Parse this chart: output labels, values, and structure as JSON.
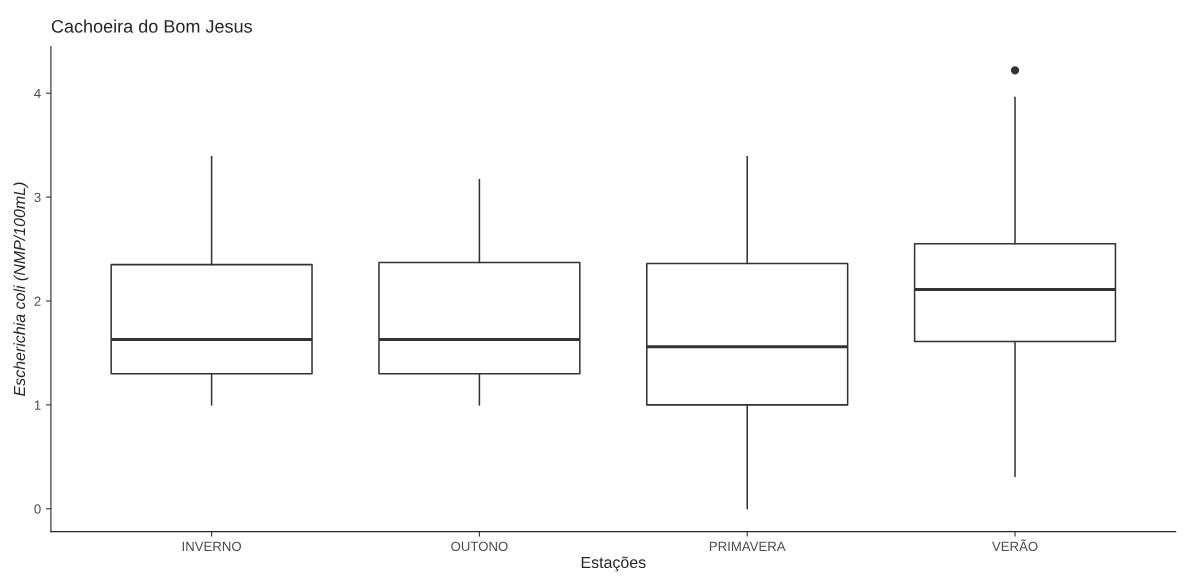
{
  "chart_data": {
    "type": "box",
    "title": "Cachoeira do Bom Jesus",
    "xlabel": "Estações",
    "ylabel": "Escherichia coli (NMP/100mL)",
    "categories": [
      "INVERNO",
      "OUTONO",
      "PRIMAVERA",
      "VERÃO"
    ],
    "boxes": [
      {
        "low": 1.0,
        "q1": 1.3,
        "median": 1.63,
        "q3": 2.35,
        "high": 3.39
      },
      {
        "low": 1.0,
        "q1": 1.3,
        "median": 1.63,
        "q3": 2.37,
        "high": 3.17
      },
      {
        "low": 0.0,
        "q1": 1.0,
        "median": 1.56,
        "q3": 2.36,
        "high": 3.39
      },
      {
        "low": 0.31,
        "q1": 1.61,
        "median": 2.11,
        "q3": 2.55,
        "high": 3.96,
        "outliers": [
          4.22
        ]
      }
    ],
    "color": "#333333",
    "ylim": [
      -0.22,
      4.45
    ],
    "yticks": [
      0,
      1,
      2,
      3,
      4
    ],
    "grid": false
  }
}
